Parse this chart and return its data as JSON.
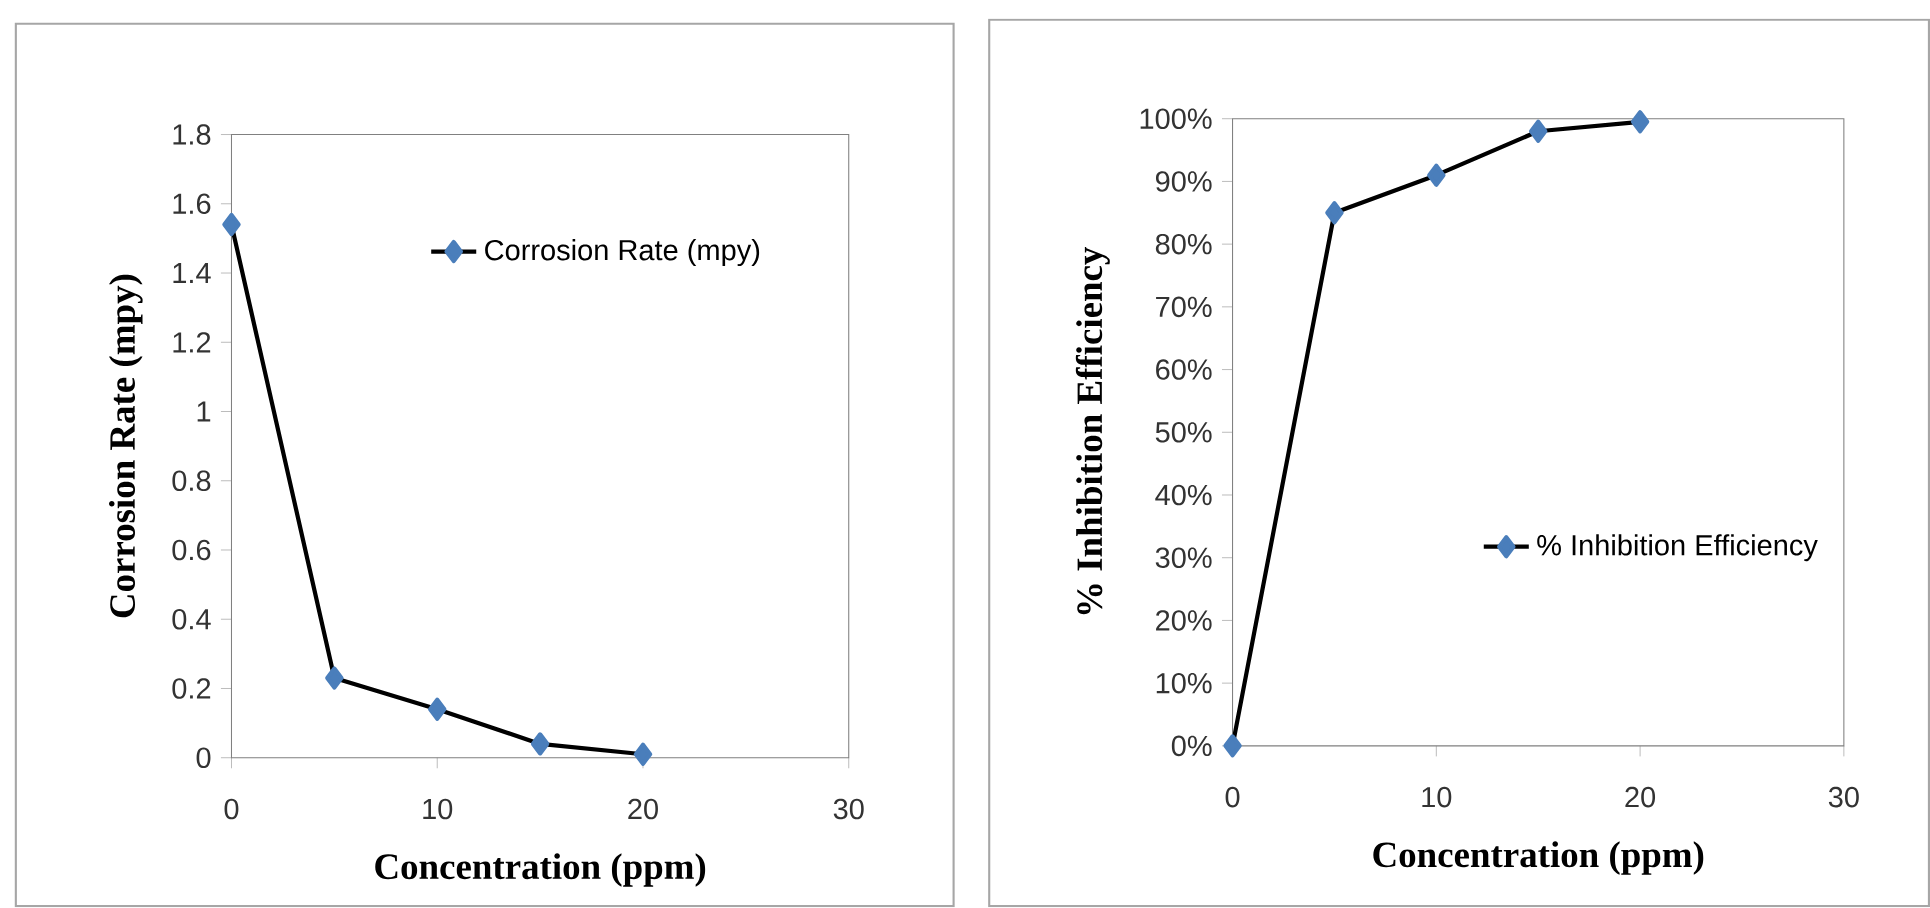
{
  "chart_data": [
    {
      "type": "line",
      "xlabel": "Concentration (ppm)",
      "ylabel": "Corrosion Rate (mpy)",
      "x": [
        0,
        5,
        10,
        15,
        20
      ],
      "series": [
        {
          "name": "Corrosion Rate (mpy)",
          "color": "#4a7ebb",
          "values": [
            1.54,
            0.23,
            0.14,
            0.04,
            0.01
          ]
        }
      ],
      "xlim": [
        0,
        30
      ],
      "xticks": [
        0,
        10,
        20,
        30
      ],
      "ylim": [
        0,
        1.8
      ],
      "yticks": [
        0,
        0.2,
        0.4,
        0.6,
        0.8,
        1,
        1.2,
        1.4,
        1.6,
        1.8
      ],
      "grid": false,
      "legend": "top right",
      "marker": "diamond",
      "line_style": "solid"
    },
    {
      "type": "line",
      "xlabel": "Concentration (ppm)",
      "ylabel": "% Inhibition Efficiency",
      "x": [
        0,
        5,
        10,
        15,
        20
      ],
      "series": [
        {
          "name": "% Inhibition Efficiency",
          "color": "#4a7ebb",
          "values": [
            0,
            85,
            91,
            98,
            99.5
          ]
        }
      ],
      "xlim": [
        0,
        30
      ],
      "xticks": [
        0,
        10,
        20,
        30
      ],
      "ylim": [
        0,
        100
      ],
      "yticks": [
        {
          "value": 0,
          "label": "0%"
        },
        {
          "value": 10,
          "label": "10%"
        },
        {
          "value": 20,
          "label": "20%"
        },
        {
          "value": 30,
          "label": "30%"
        },
        {
          "value": 40,
          "label": "40%"
        },
        {
          "value": 50,
          "label": "50%"
        },
        {
          "value": 60,
          "label": "60%"
        },
        {
          "value": 70,
          "label": "70%"
        },
        {
          "value": 80,
          "label": "80%"
        },
        {
          "value": 90,
          "label": "90%"
        },
        {
          "value": 100,
          "label": "100%"
        }
      ],
      "grid": false,
      "legend": "bottom right",
      "marker": "diamond",
      "line_style": "solid"
    }
  ]
}
